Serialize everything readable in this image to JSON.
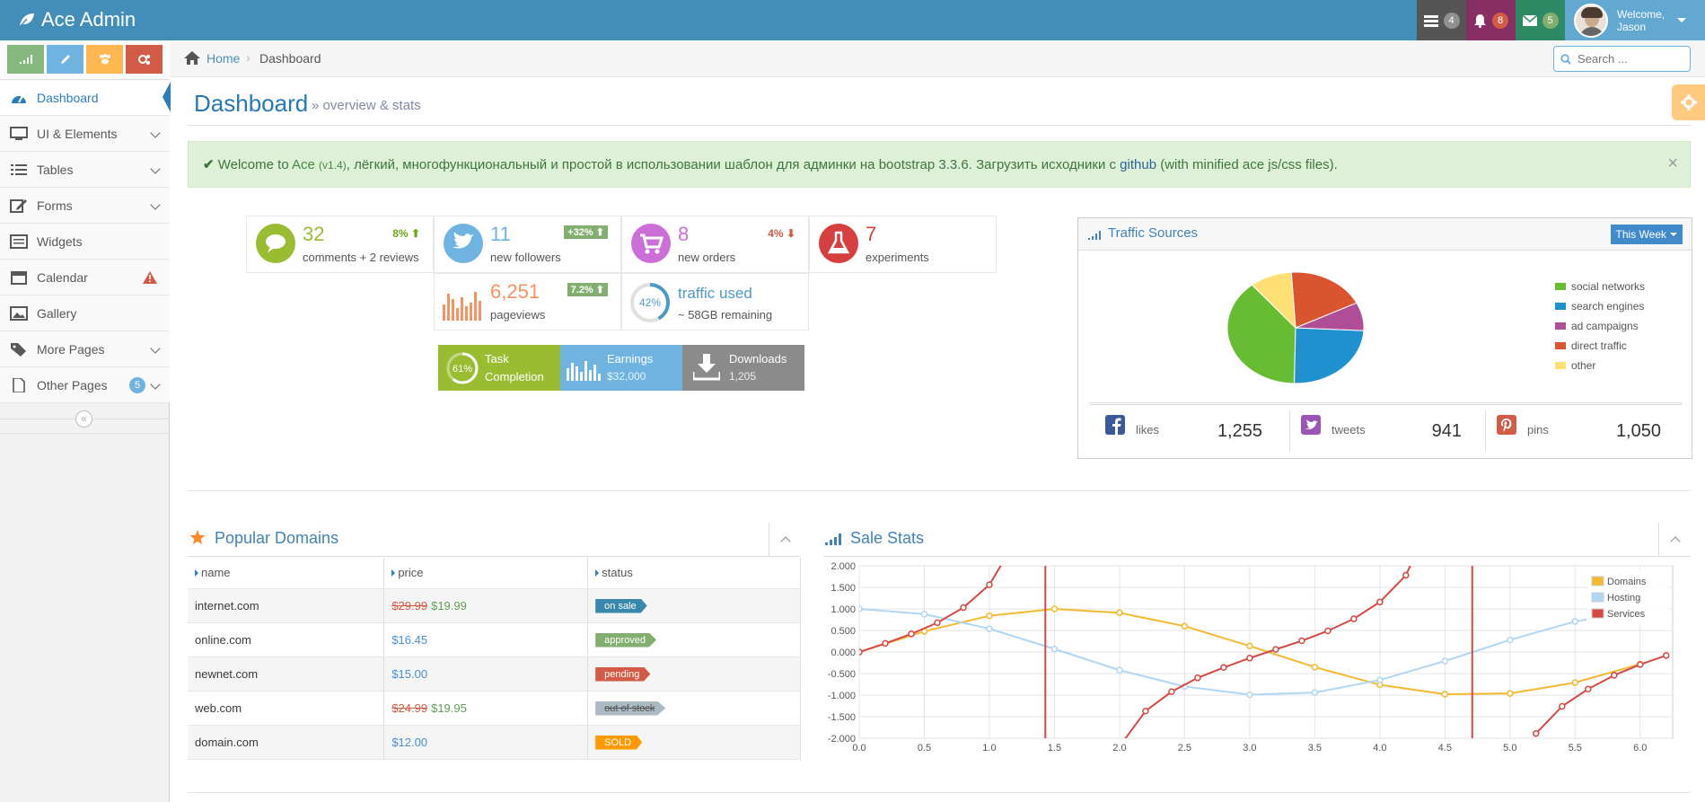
{
  "navbar": {
    "brand": "Ace Admin",
    "tasks_count": "4",
    "notifications_count": "8",
    "messages_count": "5",
    "welcome": "Welcome,",
    "user": "Jason",
    "colors": {
      "navbar": "#438eb9",
      "tasks": "#555555",
      "notifications": "#b74635",
      "messages": "#2e8965"
    }
  },
  "sidebar": {
    "shortcut_colors": [
      "#87b87f",
      "#6fb3e0",
      "#ffb752",
      "#d15b47"
    ],
    "items": [
      {
        "label": "Dashboard",
        "icon": "tachometer-icon"
      },
      {
        "label": "UI & Elements",
        "icon": "desktop-icon"
      },
      {
        "label": "Tables",
        "icon": "list-icon"
      },
      {
        "label": "Forms",
        "icon": "pencil-square-icon"
      },
      {
        "label": "Widgets",
        "icon": "list-alt-icon"
      },
      {
        "label": "Calendar",
        "icon": "calendar-icon"
      },
      {
        "label": "Gallery",
        "icon": "picture-icon"
      },
      {
        "label": "More Pages",
        "icon": "tag-icon"
      },
      {
        "label": "Other Pages",
        "icon": "file-icon",
        "badge": "5"
      }
    ]
  },
  "breadcrumb": {
    "home": "Home",
    "current": "Dashboard",
    "search_placeholder": "Search ..."
  },
  "page": {
    "title": "Dashboard",
    "subtitle": "» overview & stats"
  },
  "alert": {
    "prefix": "Welcome to",
    "ace": "Ace",
    "version": "(v1.4)",
    "middle": ", лёгкий, многофункциональный и простой в использовании шаблон для админки на bootstrap 3.3.6. Загрузить исходники с",
    "github": "github",
    "suffix": "(with minified ace js/css files)."
  },
  "infoboxes": [
    {
      "number": "32",
      "text": "comments + 2 reviews",
      "stat": "8%"
    },
    {
      "number": "11",
      "text": "new followers",
      "stat": "+32%"
    },
    {
      "number": "8",
      "text": "new orders",
      "stat": "4%"
    },
    {
      "number": "7",
      "text": "experiments"
    },
    {
      "number": "6,251",
      "text": "pageviews",
      "stat": "7.2%"
    },
    {
      "number": "traffic used",
      "text": "~ 58GB remaining",
      "percent": "42%"
    }
  ],
  "mini_boxes": [
    {
      "line1": "Task",
      "line2": "Completion",
      "percent": "61%"
    },
    {
      "line1": "Earnings",
      "line2": "$32,000"
    },
    {
      "line1": "Downloads",
      "line2": "1,205"
    }
  ],
  "traffic": {
    "title": "Traffic Sources",
    "period": "This Week",
    "legend": [
      {
        "label": "social networks",
        "color": "#68bc31",
        "value": 38.7
      },
      {
        "label": "search engines",
        "color": "#2091cf",
        "value": 24.5
      },
      {
        "label": "ad campaigns",
        "color": "#af4e96",
        "value": 8.2
      },
      {
        "label": "direct traffic",
        "color": "#da5430",
        "value": 18.6
      },
      {
        "label": "other",
        "color": "#fee074",
        "value": 10
      }
    ],
    "social": [
      {
        "label": "likes",
        "value": "1,255"
      },
      {
        "label": "tweets",
        "value": "941"
      },
      {
        "label": "pins",
        "value": "1,050"
      }
    ]
  },
  "domains": {
    "title": "Popular Domains",
    "headers": [
      "name",
      "price",
      "status"
    ],
    "rows": [
      {
        "name": "internet.com",
        "old": "$29.99",
        "price": "$19.99",
        "status": "on sale",
        "color": "#3a87ad"
      },
      {
        "name": "online.com",
        "old": "",
        "price": "$16.45",
        "status": "approved",
        "color": "#82af6f"
      },
      {
        "name": "newnet.com",
        "old": "",
        "price": "$15.00",
        "status": "pending",
        "color": "#d15b47"
      },
      {
        "name": "web.com",
        "old": "$24.99",
        "price": "$19.95",
        "status": "out of stock",
        "color": "#abbac3"
      },
      {
        "name": "domain.com",
        "old": "",
        "price": "$12.00",
        "status": "SOLD",
        "color": "#ff9900"
      }
    ]
  },
  "chart_data": {
    "title": "Sale Stats",
    "type": "line",
    "xlim": [
      0,
      6.25
    ],
    "ylim": [
      -2,
      2
    ],
    "x_ticks": [
      "0.0",
      "0.5",
      "1.0",
      "1.5",
      "2.0",
      "2.5",
      "3.0",
      "3.5",
      "4.0",
      "4.5",
      "5.0",
      "5.5",
      "6.0"
    ],
    "y_ticks": [
      "2.000",
      "1.500",
      "1.000",
      "0.500",
      "0.000",
      "-0.500",
      "-1.000",
      "-1.500",
      "-2.000"
    ],
    "legend_position": "top-right",
    "grid": true,
    "series": [
      {
        "name": "Domains",
        "color": "#f4b92e",
        "x": [
          0,
          0.5,
          1,
          1.5,
          2,
          2.5,
          3,
          3.5,
          4,
          4.5,
          5,
          5.5,
          6
        ],
        "y": [
          0,
          0.48,
          0.84,
          1.0,
          0.91,
          0.6,
          0.14,
          -0.35,
          -0.76,
          -0.98,
          -0.96,
          -0.71,
          -0.28
        ]
      },
      {
        "name": "Hosting",
        "color": "#afd6f3",
        "x": [
          0,
          0.5,
          1,
          1.5,
          2,
          2.5,
          3,
          3.5,
          4,
          4.5,
          5,
          5.5,
          6
        ],
        "y": [
          1.0,
          0.88,
          0.54,
          0.07,
          -0.42,
          -0.8,
          -0.99,
          -0.94,
          -0.65,
          -0.21,
          0.28,
          0.71,
          0.96
        ]
      },
      {
        "name": "Services",
        "color": "#d64844",
        "x": [
          0,
          0.2,
          0.4,
          0.6,
          0.8,
          1.0,
          1.2,
          1.4,
          2.0,
          2.2,
          2.4,
          2.6,
          2.8,
          3.0,
          3.2,
          3.4,
          3.6,
          3.8,
          4.0,
          4.2,
          4.4,
          5.2,
          5.4,
          5.6,
          5.8,
          6.0,
          6.2
        ],
        "y": [
          0,
          0.2,
          0.42,
          0.68,
          1.03,
          1.56,
          2.57,
          5.8,
          -2.19,
          -1.37,
          -0.92,
          -0.6,
          -0.36,
          -0.14,
          0.06,
          0.26,
          0.49,
          0.77,
          1.16,
          1.78,
          3.1,
          -1.89,
          -1.26,
          -0.86,
          -0.54,
          -0.29,
          -0.08
        ]
      }
    ]
  }
}
